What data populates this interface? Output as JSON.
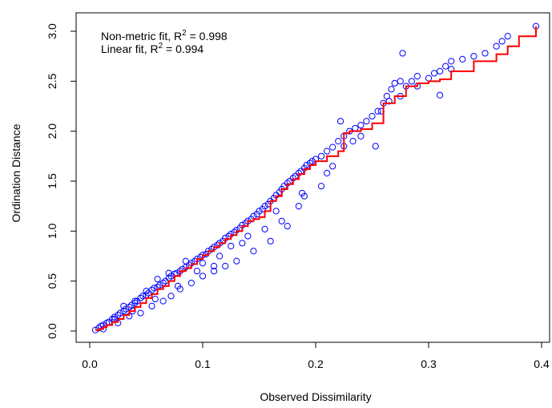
{
  "chart_data": {
    "type": "scatter",
    "title": "",
    "xlabel": "Observed Dissimilarity",
    "ylabel": "Ordination Distance",
    "xlim": [
      0.0,
      0.4
    ],
    "ylim": [
      0.0,
      3.0
    ],
    "xticks": [
      "0.0",
      "0.1",
      "0.2",
      "0.3",
      "0.4"
    ],
    "yticks": [
      "0.0",
      "0.5",
      "1.0",
      "1.5",
      "2.0",
      "2.5",
      "3.0"
    ],
    "grid": false,
    "colors": {
      "points": "#0000ff",
      "fit": "#ff0000"
    },
    "annotations": [
      {
        "id": "nonmetric",
        "prefix": "Non-metric fit, R",
        "sup": "2",
        "suffix": " = 0.998"
      },
      {
        "id": "linear",
        "prefix": "Linear fit, R",
        "sup": "2",
        "suffix": " = 0.994"
      }
    ],
    "series": [
      {
        "kind": "points",
        "x": [
          0.005,
          0.008,
          0.01,
          0.012,
          0.015,
          0.017,
          0.02,
          0.022,
          0.025,
          0.027,
          0.03,
          0.032,
          0.035,
          0.037,
          0.04,
          0.042,
          0.045,
          0.047,
          0.05,
          0.052,
          0.055,
          0.057,
          0.06,
          0.062,
          0.065,
          0.067,
          0.07,
          0.072,
          0.075,
          0.077,
          0.08,
          0.082,
          0.085,
          0.088,
          0.09,
          0.093,
          0.095,
          0.098,
          0.1,
          0.103,
          0.105,
          0.108,
          0.11,
          0.113,
          0.115,
          0.118,
          0.12,
          0.123,
          0.125,
          0.128,
          0.13,
          0.133,
          0.135,
          0.138,
          0.14,
          0.143,
          0.145,
          0.148,
          0.15,
          0.153,
          0.155,
          0.158,
          0.16,
          0.163,
          0.165,
          0.168,
          0.17,
          0.172,
          0.175,
          0.177,
          0.18,
          0.182,
          0.185,
          0.187,
          0.19,
          0.192,
          0.195,
          0.197,
          0.2,
          0.205,
          0.21,
          0.215,
          0.22,
          0.222,
          0.225,
          0.23,
          0.235,
          0.24,
          0.245,
          0.25,
          0.255,
          0.26,
          0.263,
          0.267,
          0.27,
          0.275,
          0.28,
          0.285,
          0.29,
          0.3,
          0.305,
          0.31,
          0.315,
          0.32,
          0.33,
          0.34,
          0.35,
          0.36,
          0.365,
          0.37,
          0.395,
          0.012,
          0.025,
          0.035,
          0.045,
          0.055,
          0.065,
          0.072,
          0.08,
          0.09,
          0.1,
          0.11,
          0.12,
          0.13,
          0.145,
          0.16,
          0.175,
          0.19,
          0.205,
          0.225,
          0.253,
          0.277,
          0.32,
          0.03,
          0.04,
          0.05,
          0.06,
          0.07,
          0.085,
          0.1,
          0.115,
          0.125,
          0.14,
          0.155,
          0.17,
          0.185,
          0.21,
          0.24,
          0.265,
          0.29,
          0.31,
          0.022,
          0.038,
          0.058,
          0.078,
          0.095,
          0.11,
          0.135,
          0.165,
          0.188,
          0.215,
          0.233,
          0.258,
          0.275
        ],
        "y": [
          0.01,
          0.03,
          0.05,
          0.06,
          0.08,
          0.09,
          0.12,
          0.14,
          0.16,
          0.18,
          0.2,
          0.22,
          0.24,
          0.26,
          0.28,
          0.3,
          0.33,
          0.35,
          0.36,
          0.38,
          0.41,
          0.43,
          0.44,
          0.46,
          0.48,
          0.5,
          0.53,
          0.55,
          0.57,
          0.58,
          0.6,
          0.62,
          0.64,
          0.66,
          0.68,
          0.7,
          0.72,
          0.74,
          0.76,
          0.77,
          0.8,
          0.82,
          0.84,
          0.86,
          0.88,
          0.9,
          0.93,
          0.95,
          0.97,
          0.99,
          1.01,
          1.03,
          1.06,
          1.08,
          1.1,
          1.12,
          1.15,
          1.17,
          1.2,
          1.22,
          1.25,
          1.27,
          1.3,
          1.33,
          1.36,
          1.39,
          1.42,
          1.45,
          1.48,
          1.5,
          1.53,
          1.55,
          1.58,
          1.6,
          1.63,
          1.66,
          1.68,
          1.7,
          1.72,
          1.75,
          1.8,
          1.84,
          1.9,
          2.1,
          1.95,
          2.0,
          2.03,
          2.06,
          2.1,
          2.15,
          2.2,
          2.28,
          2.35,
          2.42,
          2.48,
          2.5,
          2.45,
          2.5,
          2.55,
          2.53,
          2.58,
          2.6,
          2.65,
          2.7,
          2.72,
          2.75,
          2.78,
          2.85,
          2.9,
          2.95,
          3.05,
          0.02,
          0.08,
          0.15,
          0.18,
          0.25,
          0.3,
          0.35,
          0.42,
          0.48,
          0.55,
          0.6,
          0.65,
          0.7,
          0.8,
          0.9,
          1.05,
          1.35,
          1.45,
          1.85,
          1.85,
          2.78,
          2.62,
          0.25,
          0.3,
          0.4,
          0.52,
          0.58,
          0.7,
          0.68,
          0.75,
          0.85,
          0.95,
          1.02,
          1.1,
          1.25,
          1.58,
          1.95,
          2.3,
          2.45,
          2.36,
          0.12,
          0.2,
          0.32,
          0.45,
          0.6,
          0.65,
          0.88,
          1.2,
          1.38,
          1.65,
          1.9,
          2.2,
          2.35
        ]
      },
      {
        "kind": "step",
        "name": "",
        "x": [
          0.005,
          0.008,
          0.012,
          0.015,
          0.02,
          0.025,
          0.03,
          0.035,
          0.04,
          0.045,
          0.05,
          0.055,
          0.06,
          0.065,
          0.07,
          0.075,
          0.08,
          0.085,
          0.09,
          0.095,
          0.1,
          0.105,
          0.11,
          0.115,
          0.12,
          0.125,
          0.13,
          0.135,
          0.14,
          0.145,
          0.15,
          0.155,
          0.16,
          0.165,
          0.17,
          0.175,
          0.18,
          0.185,
          0.19,
          0.195,
          0.2,
          0.21,
          0.22,
          0.225,
          0.23,
          0.24,
          0.25,
          0.26,
          0.27,
          0.28,
          0.29,
          0.3,
          0.31,
          0.32,
          0.34,
          0.36,
          0.37,
          0.38,
          0.395
        ],
        "y": [
          0.01,
          0.02,
          0.04,
          0.06,
          0.09,
          0.12,
          0.16,
          0.2,
          0.24,
          0.28,
          0.33,
          0.37,
          0.42,
          0.45,
          0.5,
          0.55,
          0.6,
          0.63,
          0.67,
          0.72,
          0.76,
          0.8,
          0.84,
          0.88,
          0.92,
          0.96,
          1.0,
          1.05,
          1.1,
          1.12,
          1.14,
          1.2,
          1.3,
          1.35,
          1.42,
          1.47,
          1.52,
          1.57,
          1.62,
          1.66,
          1.7,
          1.75,
          1.8,
          1.98,
          2.0,
          2.02,
          2.08,
          2.28,
          2.35,
          2.45,
          2.48,
          2.5,
          2.52,
          2.6,
          2.7,
          2.77,
          2.85,
          2.95,
          3.05
        ]
      }
    ]
  }
}
